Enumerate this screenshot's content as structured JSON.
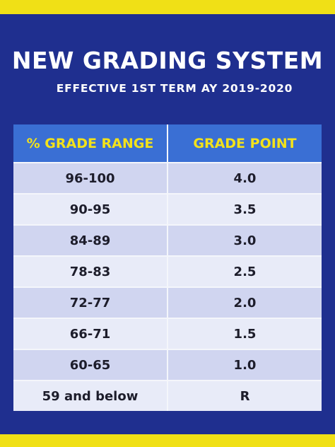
{
  "title": "NEW GRADING SYSTEM",
  "subtitle": "EFFECTIVE 1ST TERM AY 2019-2020",
  "table": {
    "headers": [
      "% GRADE  RANGE",
      "GRADE  POINT"
    ],
    "rows": [
      [
        "96-100",
        "4.0"
      ],
      [
        "90-95",
        "3.5"
      ],
      [
        "84-89",
        "3.0"
      ],
      [
        "78-83",
        "2.5"
      ],
      [
        "72-77",
        "2.0"
      ],
      [
        "66-71",
        "1.5"
      ],
      [
        "60-65",
        "1.0"
      ],
      [
        "59 and below",
        "R"
      ]
    ]
  },
  "colors": {
    "background": "#1f2f8f",
    "stripe": "#f0e016",
    "header_bg": "#3a6fd4",
    "header_text": "#f3e21a",
    "row_odd": "#d0d5f0",
    "row_even": "#e8ebf8"
  }
}
